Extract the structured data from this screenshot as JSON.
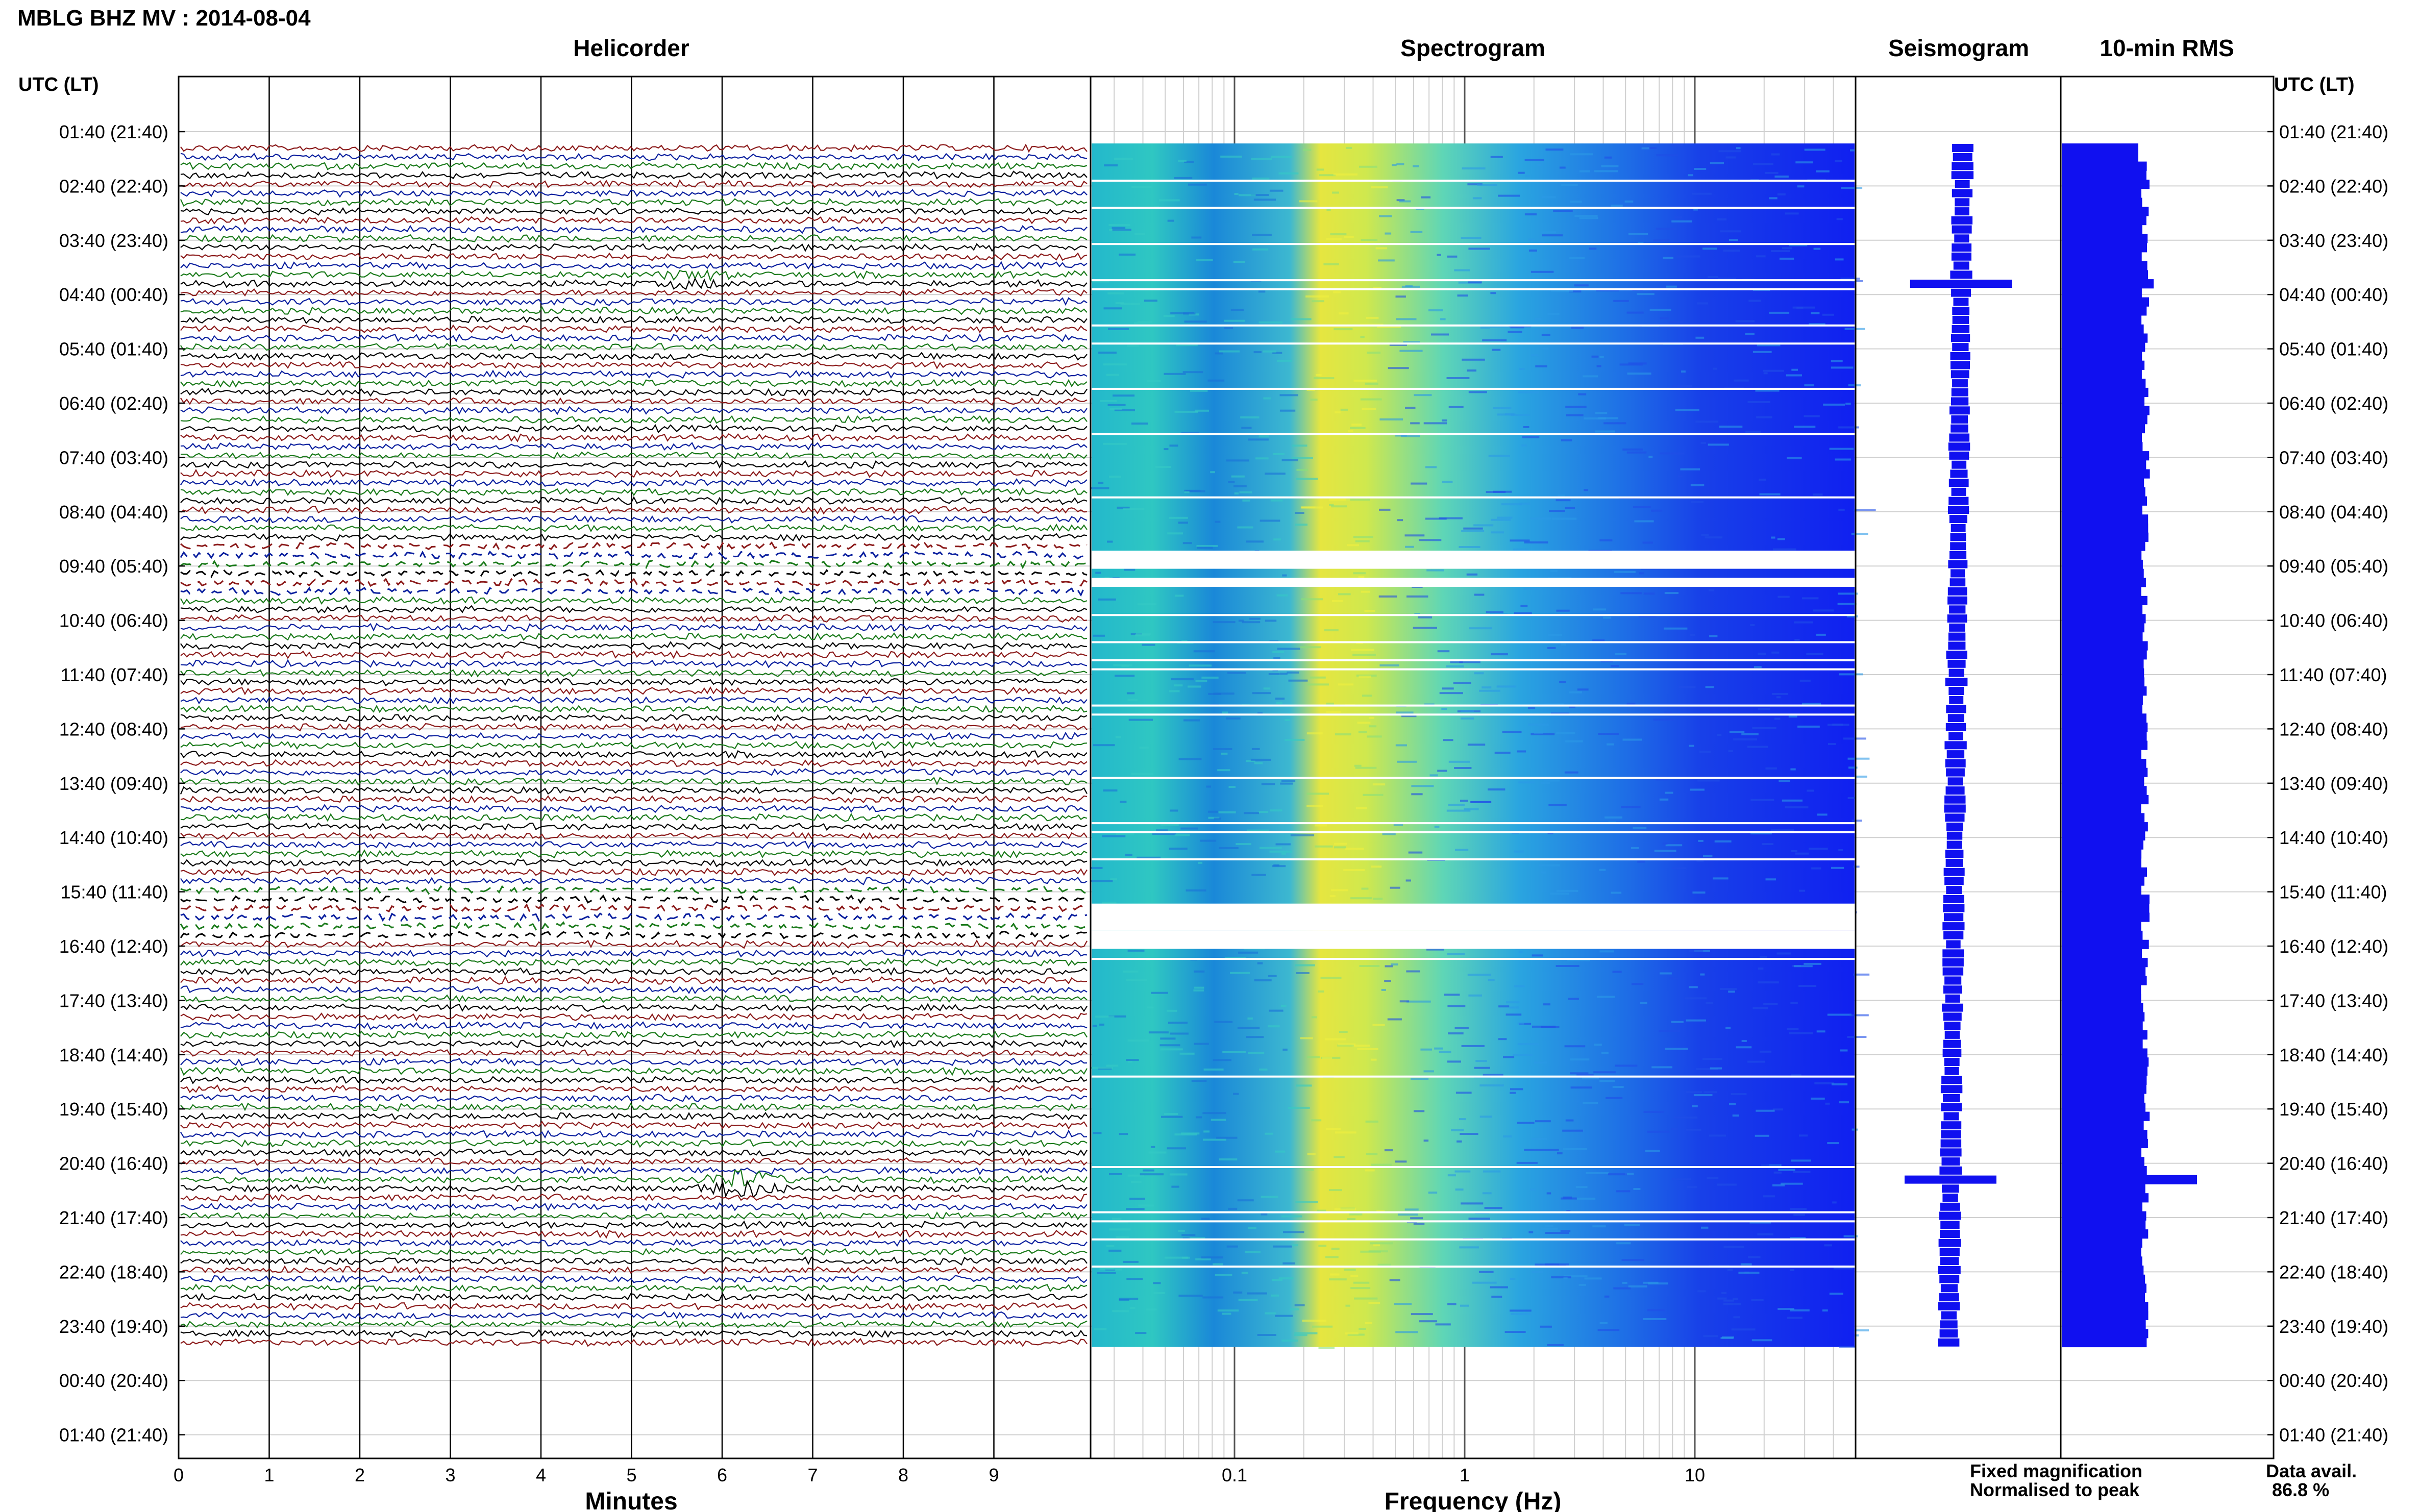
{
  "page_title": "MBLG BHZ MV : 2014-08-04",
  "panels": {
    "helicorder": "Helicorder",
    "spectrogram": "Spectrogram",
    "seismogram": "Seismogram",
    "rms": "10-min RMS"
  },
  "axis_labels": {
    "utc_left": "UTC (LT)",
    "utc_right": "UTC (LT)",
    "minutes": "Minutes",
    "frequency": "Frequency (Hz)"
  },
  "time_ticks": [
    "01:40 (21:40)",
    "02:40 (22:40)",
    "03:40 (23:40)",
    "04:40 (00:40)",
    "05:40 (01:40)",
    "06:40 (02:40)",
    "07:40 (03:40)",
    "08:40 (04:40)",
    "09:40 (05:40)",
    "10:40 (06:40)",
    "11:40 (07:40)",
    "12:40 (08:40)",
    "13:40 (09:40)",
    "14:40 (10:40)",
    "15:40 (11:40)",
    "16:40 (12:40)",
    "17:40 (13:40)",
    "18:40 (14:40)",
    "19:40 (15:40)",
    "20:40 (16:40)",
    "21:40 (17:40)",
    "22:40 (18:40)",
    "23:40 (19:40)",
    "00:40 (20:40)",
    "01:40 (21:40)"
  ],
  "minute_ticks": [
    "0",
    "1",
    "2",
    "3",
    "4",
    "5",
    "6",
    "7",
    "8",
    "9"
  ],
  "freq_ticks": [
    "0.1",
    "1",
    "10"
  ],
  "legend": {
    "fixed": "Fixed magnification",
    "normalised": "Normalised to peak",
    "fixed_color": "#1010e0",
    "normalised_color": "#e01010"
  },
  "data_avail": {
    "label": "Data avail.",
    "value": "86.8 %"
  },
  "colors": {
    "trace_cycle": [
      "#8b1a1a",
      "#0a1f9e",
      "#1a7a1a",
      "#000000"
    ],
    "rms_fill": "#1010f0",
    "seismo": "#1010f0"
  },
  "chart_data": [
    {
      "type": "line",
      "name": "helicorder",
      "x_range_minutes": [
        0,
        10
      ],
      "row_interval_minutes": 10,
      "rows_per_hour": 6,
      "data_start_utc": "01:40",
      "data_end_utc": "23:50",
      "events": [
        {
          "utc": "04:40",
          "minute": 5.5,
          "note": "small burst"
        },
        {
          "utc": "20:40",
          "minute": 6.1,
          "note": "large event"
        }
      ]
    },
    {
      "type": "heatmap",
      "name": "spectrogram",
      "xscale": "log",
      "xlim_hz": [
        0.03,
        50
      ],
      "peak_band_hz": [
        0.22,
        0.45
      ],
      "gaps_utc": [
        "06:20",
        "06:40",
        "10:00",
        "14:30"
      ]
    },
    {
      "type": "bar",
      "name": "rms",
      "orientation": "horizontal",
      "rows": 133,
      "typical_relative": 0.9,
      "peaks": [
        {
          "utc": "04:40",
          "relative": 1.05
        },
        {
          "utc": "20:40",
          "relative": 1.5
        }
      ]
    }
  ]
}
